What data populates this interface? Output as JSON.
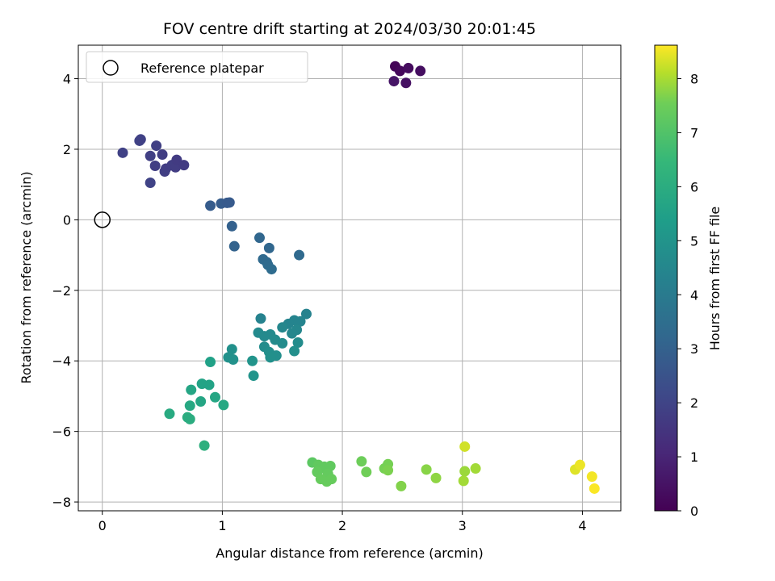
{
  "chart_data": {
    "type": "scatter",
    "title": "FOV centre drift starting at 2024/03/30 20:01:45",
    "xlabel": "Angular distance from reference (arcmin)",
    "ylabel": "Rotation from reference (arcmin)",
    "xlim": [
      -0.2,
      4.32
    ],
    "ylim": [
      -8.25,
      4.95
    ],
    "xticks": [
      0,
      1,
      2,
      3,
      4
    ],
    "yticks": [
      -8,
      -6,
      -4,
      -2,
      0,
      2,
      4
    ],
    "grid": true,
    "legend": {
      "position": "top-left",
      "entries": [
        "Reference platepar"
      ]
    },
    "reference_point": {
      "x": 0,
      "y": 0
    },
    "colorbar": {
      "label": "Hours from first FF file",
      "colormap": "viridis",
      "range": [
        0,
        8.62
      ],
      "ticks": [
        0,
        1,
        2,
        3,
        4,
        5,
        6,
        7,
        8
      ]
    },
    "points": [
      {
        "x": 2.44,
        "y": 4.35,
        "c": 0.1
      },
      {
        "x": 2.48,
        "y": 4.22,
        "c": 0.2
      },
      {
        "x": 2.55,
        "y": 4.3,
        "c": 0.3
      },
      {
        "x": 2.65,
        "y": 4.22,
        "c": 0.35
      },
      {
        "x": 2.43,
        "y": 3.93,
        "c": 0.55
      },
      {
        "x": 2.53,
        "y": 3.88,
        "c": 0.45
      },
      {
        "x": 0.17,
        "y": 1.9,
        "c": 1.9
      },
      {
        "x": 0.31,
        "y": 2.24,
        "c": 1.95
      },
      {
        "x": 0.32,
        "y": 2.28,
        "c": 1.9
      },
      {
        "x": 0.45,
        "y": 2.1,
        "c": 1.85
      },
      {
        "x": 0.5,
        "y": 1.85,
        "c": 1.8
      },
      {
        "x": 0.4,
        "y": 1.81,
        "c": 1.85
      },
      {
        "x": 0.44,
        "y": 1.53,
        "c": 1.8
      },
      {
        "x": 0.53,
        "y": 1.45,
        "c": 1.75
      },
      {
        "x": 0.52,
        "y": 1.37,
        "c": 1.8
      },
      {
        "x": 0.58,
        "y": 1.55,
        "c": 1.8
      },
      {
        "x": 0.61,
        "y": 1.49,
        "c": 1.75
      },
      {
        "x": 0.62,
        "y": 1.7,
        "c": 1.7
      },
      {
        "x": 0.68,
        "y": 1.55,
        "c": 1.7
      },
      {
        "x": 0.4,
        "y": 1.05,
        "c": 1.95
      },
      {
        "x": 0.9,
        "y": 0.4,
        "c": 2.8
      },
      {
        "x": 0.99,
        "y": 0.46,
        "c": 2.8
      },
      {
        "x": 1.04,
        "y": 0.48,
        "c": 2.75
      },
      {
        "x": 1.06,
        "y": 0.49,
        "c": 2.75
      },
      {
        "x": 1.08,
        "y": -0.18,
        "c": 3.0
      },
      {
        "x": 1.1,
        "y": -0.75,
        "c": 3.05
      },
      {
        "x": 1.31,
        "y": -0.51,
        "c": 3.2
      },
      {
        "x": 1.39,
        "y": -0.8,
        "c": 3.2
      },
      {
        "x": 1.34,
        "y": -1.12,
        "c": 3.3
      },
      {
        "x": 1.37,
        "y": -1.2,
        "c": 3.3
      },
      {
        "x": 1.38,
        "y": -1.28,
        "c": 3.35
      },
      {
        "x": 1.41,
        "y": -1.4,
        "c": 3.4
      },
      {
        "x": 1.64,
        "y": -1.0,
        "c": 3.3
      },
      {
        "x": 1.32,
        "y": -2.8,
        "c": 4.3
      },
      {
        "x": 1.7,
        "y": -2.67,
        "c": 4.3
      },
      {
        "x": 1.65,
        "y": -2.88,
        "c": 4.4
      },
      {
        "x": 1.6,
        "y": -2.85,
        "c": 4.4
      },
      {
        "x": 1.55,
        "y": -2.95,
        "c": 4.4
      },
      {
        "x": 1.5,
        "y": -3.05,
        "c": 4.5
      },
      {
        "x": 1.62,
        "y": -3.12,
        "c": 4.5
      },
      {
        "x": 1.58,
        "y": -3.22,
        "c": 4.5
      },
      {
        "x": 1.3,
        "y": -3.2,
        "c": 4.6
      },
      {
        "x": 1.35,
        "y": -3.3,
        "c": 4.6
      },
      {
        "x": 1.4,
        "y": -3.25,
        "c": 4.6
      },
      {
        "x": 1.44,
        "y": -3.4,
        "c": 4.65
      },
      {
        "x": 1.5,
        "y": -3.5,
        "c": 4.7
      },
      {
        "x": 1.63,
        "y": -3.48,
        "c": 4.7
      },
      {
        "x": 1.35,
        "y": -3.6,
        "c": 4.7
      },
      {
        "x": 1.39,
        "y": -3.75,
        "c": 4.8
      },
      {
        "x": 1.45,
        "y": -3.85,
        "c": 4.8
      },
      {
        "x": 1.4,
        "y": -3.9,
        "c": 4.85
      },
      {
        "x": 1.6,
        "y": -3.72,
        "c": 4.8
      },
      {
        "x": 1.08,
        "y": -3.67,
        "c": 4.85
      },
      {
        "x": 1.05,
        "y": -3.9,
        "c": 4.9
      },
      {
        "x": 1.09,
        "y": -3.96,
        "c": 4.9
      },
      {
        "x": 1.25,
        "y": -4.0,
        "c": 5.0
      },
      {
        "x": 1.26,
        "y": -4.42,
        "c": 5.0
      },
      {
        "x": 0.9,
        "y": -4.03,
        "c": 5.5
      },
      {
        "x": 0.83,
        "y": -4.65,
        "c": 5.6
      },
      {
        "x": 0.89,
        "y": -4.68,
        "c": 5.6
      },
      {
        "x": 0.74,
        "y": -4.82,
        "c": 5.7
      },
      {
        "x": 0.82,
        "y": -5.15,
        "c": 5.7
      },
      {
        "x": 0.94,
        "y": -5.03,
        "c": 5.75
      },
      {
        "x": 0.73,
        "y": -5.27,
        "c": 5.8
      },
      {
        "x": 1.01,
        "y": -5.25,
        "c": 5.8
      },
      {
        "x": 0.56,
        "y": -5.5,
        "c": 5.9
      },
      {
        "x": 0.71,
        "y": -5.6,
        "c": 6.0
      },
      {
        "x": 0.73,
        "y": -5.65,
        "c": 6.0
      },
      {
        "x": 0.85,
        "y": -6.4,
        "c": 6.1
      },
      {
        "x": 1.75,
        "y": -6.88,
        "c": 7.2
      },
      {
        "x": 1.8,
        "y": -6.95,
        "c": 7.3
      },
      {
        "x": 1.82,
        "y": -7.05,
        "c": 7.3
      },
      {
        "x": 1.85,
        "y": -7.0,
        "c": 7.3
      },
      {
        "x": 1.9,
        "y": -6.98,
        "c": 7.3
      },
      {
        "x": 1.79,
        "y": -7.15,
        "c": 7.35
      },
      {
        "x": 1.88,
        "y": -7.2,
        "c": 7.35
      },
      {
        "x": 1.82,
        "y": -7.35,
        "c": 7.4
      },
      {
        "x": 1.87,
        "y": -7.42,
        "c": 7.4
      },
      {
        "x": 1.91,
        "y": -7.35,
        "c": 7.4
      },
      {
        "x": 2.16,
        "y": -6.85,
        "c": 7.5
      },
      {
        "x": 2.2,
        "y": -7.15,
        "c": 7.55
      },
      {
        "x": 2.35,
        "y": -7.05,
        "c": 7.6
      },
      {
        "x": 2.38,
        "y": -6.93,
        "c": 7.6
      },
      {
        "x": 2.38,
        "y": -7.1,
        "c": 7.65
      },
      {
        "x": 2.49,
        "y": -7.55,
        "c": 7.7
      },
      {
        "x": 2.7,
        "y": -7.08,
        "c": 7.75
      },
      {
        "x": 2.78,
        "y": -7.32,
        "c": 7.8
      },
      {
        "x": 3.02,
        "y": -6.43,
        "c": 8.3
      },
      {
        "x": 3.02,
        "y": -7.13,
        "c": 7.9
      },
      {
        "x": 3.11,
        "y": -7.05,
        "c": 7.95
      },
      {
        "x": 3.01,
        "y": -7.4,
        "c": 7.95
      },
      {
        "x": 3.94,
        "y": -7.08,
        "c": 8.4
      },
      {
        "x": 3.98,
        "y": -6.95,
        "c": 8.5
      },
      {
        "x": 4.08,
        "y": -7.28,
        "c": 8.55
      },
      {
        "x": 4.1,
        "y": -7.62,
        "c": 8.6
      }
    ]
  }
}
